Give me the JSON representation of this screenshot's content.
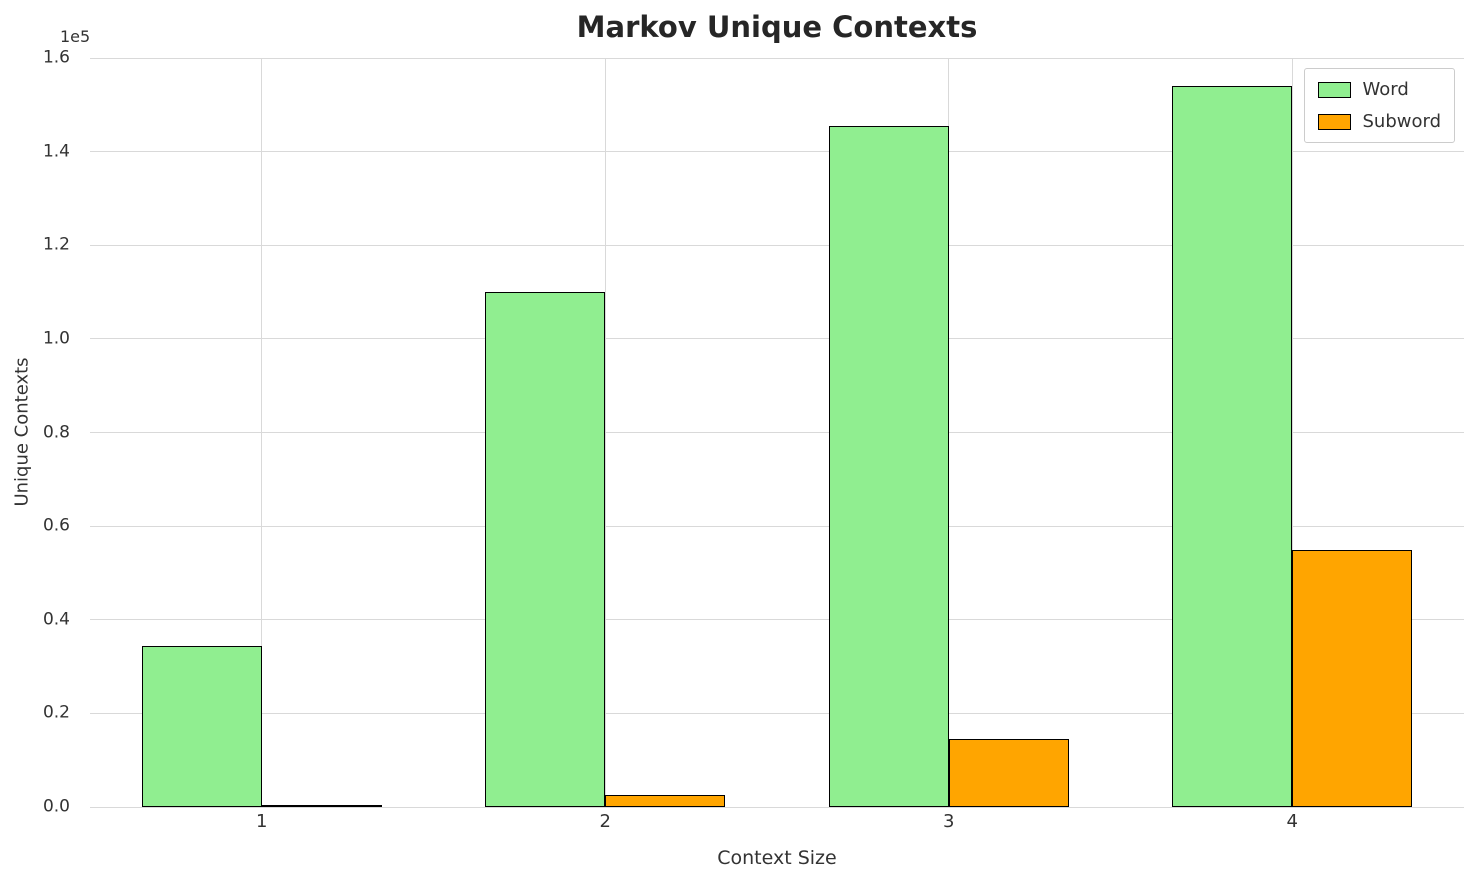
{
  "chart_data": {
    "type": "bar",
    "title": "Markov Unique Contexts",
    "xlabel": "Context Size",
    "ylabel": "Unique Contexts",
    "y_offset_label": "1e5",
    "categories": [
      "1",
      "2",
      "3",
      "4"
    ],
    "series": [
      {
        "name": "Word",
        "color": "#90EE90",
        "values": [
          34500,
          110000,
          145500,
          154000
        ]
      },
      {
        "name": "Subword",
        "color": "#FFA500",
        "values": [
          400,
          2500,
          14500,
          55000
        ]
      }
    ],
    "bar_edge_color": "#000000",
    "bar_width_fraction": 0.35,
    "ylim": [
      0,
      160000
    ],
    "ytick_values": [
      0,
      20000,
      40000,
      60000,
      80000,
      100000,
      120000,
      140000,
      160000
    ],
    "ytick_labels": [
      "0.0",
      "0.2",
      "0.4",
      "0.6",
      "0.8",
      "1.0",
      "1.2",
      "1.4",
      "1.6"
    ],
    "grid": true,
    "legend_position": "upper-right"
  },
  "colors": {
    "background": "#ffffff",
    "grid": "#d9d9d9",
    "text": "#333333",
    "title": "#262626"
  }
}
